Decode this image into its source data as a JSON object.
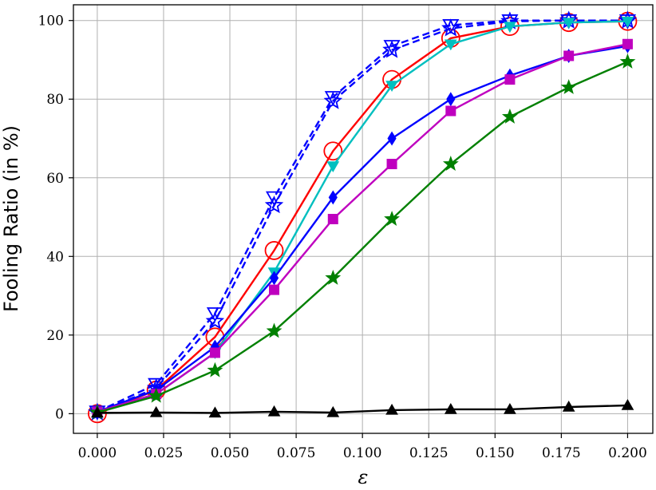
{
  "chart_data": {
    "type": "line",
    "title": "",
    "xlabel": "ε",
    "ylabel": "Fooling Ratio (in %)",
    "xlim": [
      -0.009,
      0.2095
    ],
    "ylim": [
      -5,
      104
    ],
    "grid": true,
    "x_ticks": [
      0.0,
      0.025,
      0.05,
      0.075,
      0.1,
      0.125,
      0.15,
      0.175,
      0.2
    ],
    "x_tick_labels": [
      "0.000",
      "0.025",
      "0.050",
      "0.075",
      "0.100",
      "0.125",
      "0.150",
      "0.175",
      "0.200"
    ],
    "y_ticks": [
      0,
      20,
      40,
      60,
      80,
      100
    ],
    "y_tick_labels": [
      "0",
      "20",
      "40",
      "60",
      "80",
      "100"
    ],
    "x": [
      0.0,
      0.0222,
      0.0444,
      0.0667,
      0.0889,
      0.1111,
      0.1333,
      0.1556,
      0.1778,
      0.2
    ],
    "series": [
      {
        "color": "#ff0000",
        "marker": "circle-open",
        "dash": "solid",
        "values": [
          0,
          6.0,
          19.5,
          41.5,
          66.8,
          85.0,
          95.5,
          98.5,
          99.5,
          99.8
        ]
      },
      {
        "color": "#0000ff",
        "marker": "triangle-down-open",
        "dash": "dashed",
        "values": [
          0.5,
          7.5,
          25.5,
          55.0,
          80.5,
          93.5,
          98.8,
          100,
          100,
          100
        ]
      },
      {
        "color": "#0000ff",
        "marker": "star-open",
        "dash": "dashed",
        "values": [
          0.3,
          6.5,
          23.5,
          53.0,
          79.5,
          92.5,
          98.0,
          99.8,
          100,
          100
        ]
      },
      {
        "color": "#00bfbf",
        "marker": "triangle-down",
        "dash": "solid",
        "values": [
          0.5,
          5.0,
          15.5,
          36.0,
          63.0,
          83.5,
          94.0,
          98.5,
          99.5,
          99.8
        ]
      },
      {
        "color": "#0000ff",
        "marker": "diamond",
        "dash": "solid",
        "values": [
          0.5,
          6.0,
          17.0,
          34.5,
          55.0,
          70.0,
          80.0,
          86.0,
          91.0,
          93.5
        ]
      },
      {
        "color": "#bf00bf",
        "marker": "square",
        "dash": "solid",
        "values": [
          0.5,
          5.0,
          15.5,
          31.5,
          49.5,
          63.5,
          77.0,
          85.0,
          91.0,
          94.0
        ]
      },
      {
        "color": "#008000",
        "marker": "star",
        "dash": "solid",
        "values": [
          0.3,
          4.5,
          11.0,
          21.0,
          34.5,
          49.5,
          63.5,
          75.5,
          83.0,
          89.5
        ]
      },
      {
        "color": "#000000",
        "marker": "triangle-up",
        "dash": "solid",
        "values": [
          0.2,
          0.3,
          0.2,
          0.5,
          0.3,
          0.9,
          1.1,
          1.1,
          1.7,
          2.1
        ]
      }
    ]
  }
}
